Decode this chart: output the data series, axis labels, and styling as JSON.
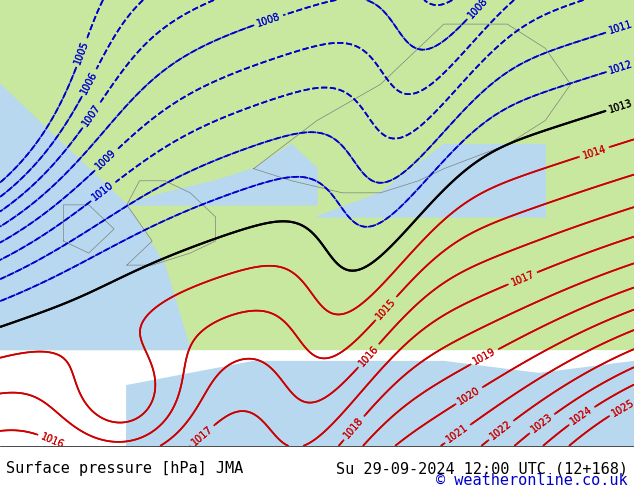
{
  "title_left": "Surface pressure [hPa] JMA",
  "title_right": "Su 29-09-2024 12:00 UTC (12+168)",
  "copyright": "© weatheronline.co.uk",
  "bg_color": "#c8e8a0",
  "land_color": "#c8e8a0",
  "water_color": "#d0e8f0",
  "isobars": {
    "blue": [
      1005,
      1006,
      1007,
      1008,
      1009,
      1010,
      1011,
      1012
    ],
    "black": [
      1013
    ],
    "red": [
      1014,
      1015,
      1016,
      1017,
      1018,
      1019,
      1020,
      1021,
      1022,
      1023,
      1024,
      1025
    ]
  },
  "bottom_bar_color": "#ffffff",
  "text_color_left": "#000000",
  "text_color_right": "#000000",
  "copyright_color": "#0000cc",
  "font_size_bottom": 11,
  "map_extent": [
    -15,
    35,
    35,
    72
  ]
}
